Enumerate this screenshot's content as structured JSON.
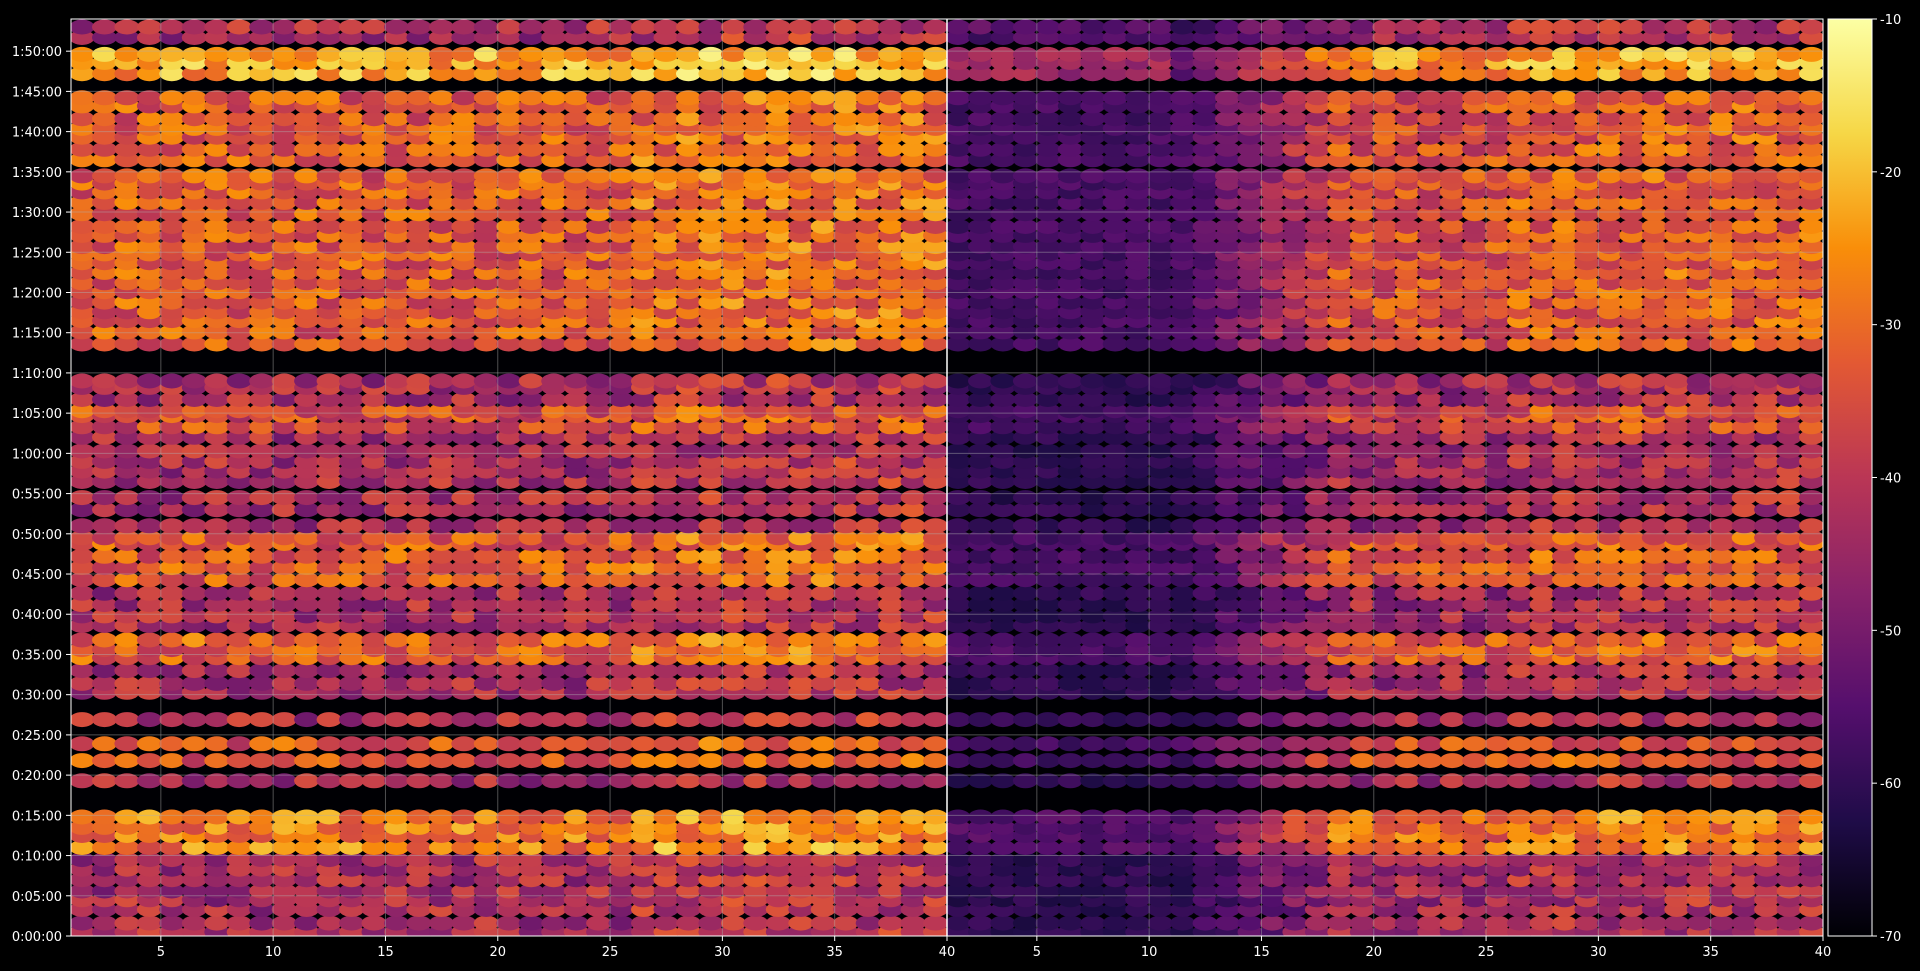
{
  "chart_data": {
    "type": "heatmap",
    "colormap": "inferno",
    "panels": [
      {
        "name": "",
        "x_range": [
          1,
          40
        ]
      },
      {
        "name": "",
        "x_range": [
          1,
          40
        ]
      }
    ],
    "x_ticks": [
      "5",
      "10",
      "15",
      "20",
      "25",
      "30",
      "35",
      "40"
    ],
    "x_tick_values": [
      5,
      10,
      15,
      20,
      25,
      30,
      35,
      40
    ],
    "y_ticks": [
      "0:00:00",
      "0:05:00",
      "0:10:00",
      "0:15:00",
      "0:20:00",
      "0:25:00",
      "0:30:00",
      "0:35:00",
      "0:40:00",
      "0:45:00",
      "0:50:00",
      "0:55:00",
      "1:00:00",
      "1:05:00",
      "1:10:00",
      "1:15:00",
      "1:20:00",
      "1:25:00",
      "1:30:00",
      "1:35:00",
      "1:40:00",
      "1:45:00",
      "1:50:00"
    ],
    "y_tick_minutes": [
      0,
      5,
      10,
      15,
      20,
      25,
      30,
      35,
      40,
      45,
      50,
      55,
      60,
      65,
      70,
      75,
      80,
      85,
      90,
      95,
      100,
      105,
      110
    ],
    "ylim_minutes": [
      0,
      114
    ],
    "colorbar": {
      "ticks": [
        "-10",
        "-20",
        "-30",
        "-40",
        "-50",
        "-60",
        "-70"
      ],
      "tick_values": [
        -10,
        -20,
        -30,
        -40,
        -50,
        -60,
        -70
      ],
      "range": [
        -70,
        -10
      ]
    },
    "grid": true,
    "title": "",
    "xlabel": "",
    "ylabel": "",
    "row_minutes": [
      0.5,
      1.6,
      3.3,
      4.5,
      5.6,
      7.0,
      8.3,
      9.5,
      11.0,
      12.5,
      13.5,
      14.8,
      19.3,
      21.8,
      23.9,
      26.9,
      30.3,
      31.4,
      33.0,
      34.6,
      35.6,
      36.8,
      38.6,
      39.8,
      41.2,
      42.6,
      44.3,
      45.8,
      47.2,
      48.8,
      49.5,
      51.0,
      53.0,
      54.5,
      56.5,
      57.8,
      59.0,
      60.3,
      62.0,
      63.3,
      64.7,
      65.3,
      66.7,
      68.2,
      69.0,
      73.6,
      75.1,
      76.5,
      77.6,
      78.8,
      80.1,
      81.2,
      82.5,
      83.7,
      84.8,
      85.7,
      87.1,
      88.2,
      89.8,
      91.2,
      92.5,
      93.6,
      94.5,
      96.5,
      97.8,
      99.3,
      100.4,
      101.6,
      103.2,
      104.2,
      107.2,
      108.6,
      109.6,
      111.7,
      113.0
    ]
  }
}
